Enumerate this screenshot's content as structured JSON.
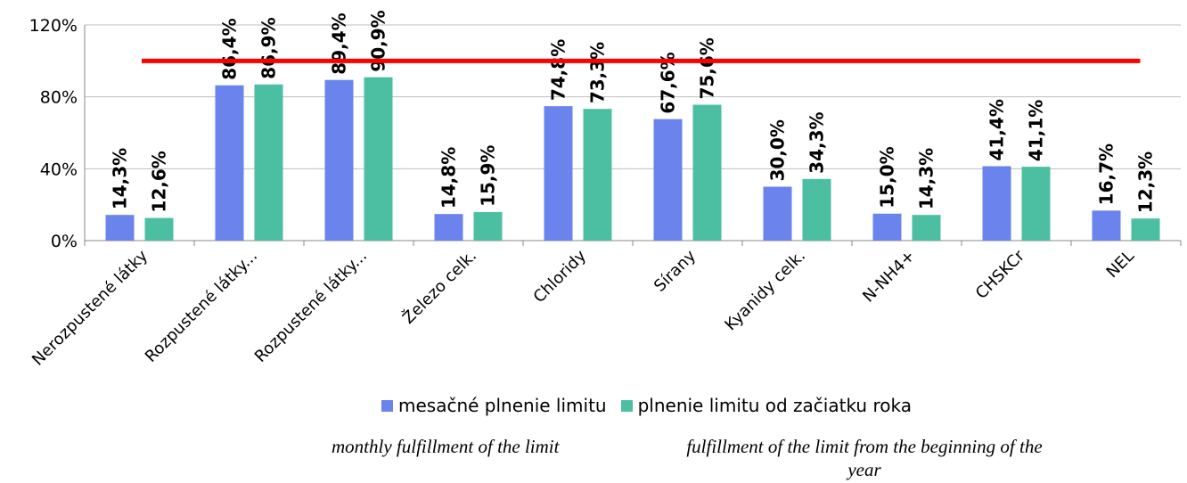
{
  "chart_data": {
    "type": "bar",
    "categories": [
      "Nerozpustené látky",
      "Rozpustené látky...",
      "Rozpustené látky...",
      "Železo celk.",
      "Chloridy",
      "Sírany",
      "Kyanidy celk.",
      "N-NH4+",
      "CHSKCr",
      "NEL"
    ],
    "series": [
      {
        "name": "mesačné plnenie limitu",
        "values": [
          14.3,
          86.4,
          89.4,
          14.8,
          74.8,
          67.6,
          30.0,
          15.0,
          41.4,
          16.7
        ],
        "labels": [
          "14,3%",
          "86,4%",
          "89,4%",
          "14,8%",
          "74,8%",
          "67,6%",
          "30,0%",
          "15,0%",
          "41,4%",
          "16,7%"
        ],
        "color": "#6b83ec"
      },
      {
        "name": "plnenie limitu od začiatku roka",
        "values": [
          12.6,
          86.9,
          90.9,
          15.9,
          73.3,
          75.6,
          34.3,
          14.3,
          41.1,
          12.3
        ],
        "labels": [
          "12,6%",
          "86,9%",
          "90,9%",
          "15,9%",
          "73,3%",
          "75,6%",
          "34,3%",
          "14,3%",
          "41,1%",
          "12,3%"
        ],
        "color": "#4cbfa3"
      }
    ],
    "limit_line": {
      "value": 100,
      "color": "#ff0000"
    },
    "ylim": [
      0,
      120
    ],
    "yticks": [
      "0%",
      "40%",
      "80%",
      "120%"
    ],
    "ytick_values": [
      0,
      40,
      80,
      120
    ],
    "grid": true,
    "legend": "bottom",
    "title": "",
    "xlabel": "",
    "ylabel": ""
  },
  "translations": {
    "series1": "monthly fulfillment of the limit",
    "series2": "fulfillment of the limit from the beginning of the year"
  }
}
